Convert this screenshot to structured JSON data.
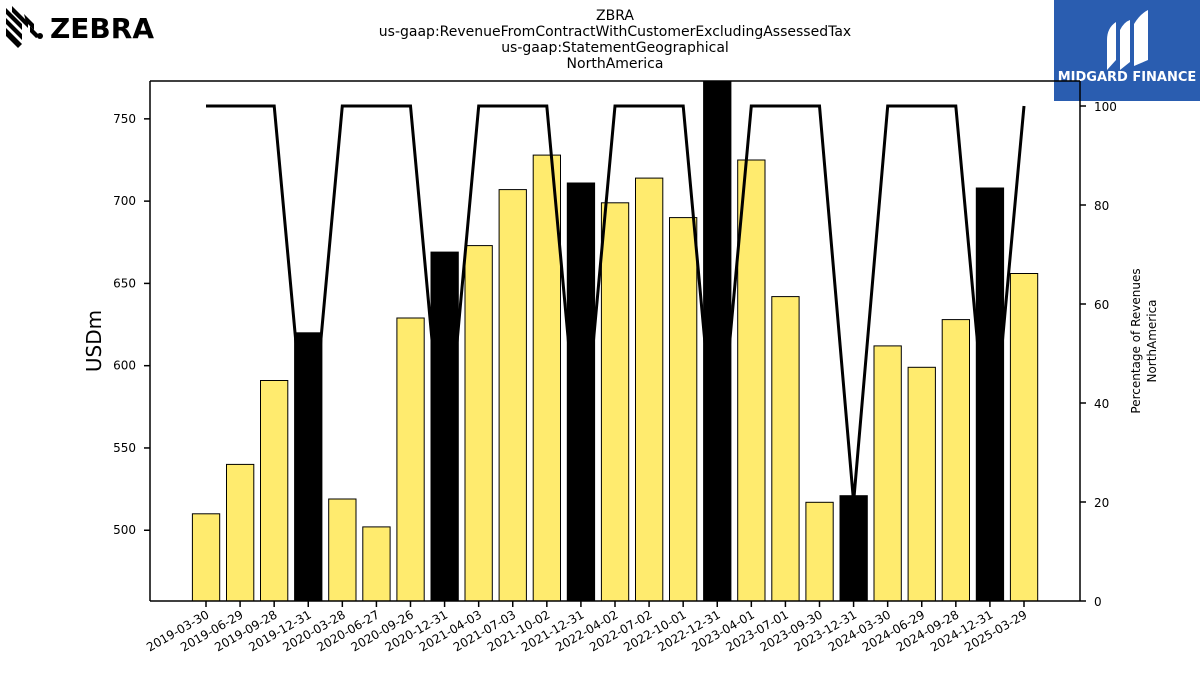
{
  "logos": {
    "left_text": "ZEBRA",
    "right_text": "MIDGARD FINANCE",
    "right_bg_color": "#2a5db0"
  },
  "chart_data": {
    "type": "bar",
    "title_lines": [
      "ZBRA",
      "us-gaap:RevenueFromContractWithCustomerExcludingAssessedTax",
      "us-gaap:StatementGeographical",
      "NorthAmerica"
    ],
    "ylabel": "USDm",
    "y2label_lines": [
      "Percentage of Revenues",
      "NorthAmerica"
    ],
    "ylim": [
      457,
      773
    ],
    "y2lim": [
      0,
      100
    ],
    "yticks": [
      500,
      550,
      600,
      650,
      700,
      750
    ],
    "y2ticks": [
      0,
      20,
      40,
      60,
      80,
      100
    ],
    "categories": [
      "2019-03-30",
      "2019-06-29",
      "2019-09-28",
      "2019-12-31",
      "2020-03-28",
      "2020-06-27",
      "2020-09-26",
      "2020-12-31",
      "2021-04-03",
      "2021-07-03",
      "2021-10-02",
      "2021-12-31",
      "2022-04-02",
      "2022-07-02",
      "2022-10-01",
      "2022-12-31",
      "2023-04-01",
      "2023-07-01",
      "2023-09-30",
      "2023-12-31",
      "2024-03-30",
      "2024-06-29",
      "2024-09-28",
      "2024-12-31",
      "2025-03-29"
    ],
    "series": [
      {
        "type": "bar",
        "values": [
          510,
          540,
          591,
          620,
          519,
          502,
          629,
          669,
          673,
          707,
          728,
          711,
          699,
          714,
          690,
          775,
          725,
          642,
          517,
          521,
          612,
          599,
          628,
          708,
          656
        ],
        "year_end": [
          false,
          false,
          false,
          true,
          false,
          false,
          false,
          true,
          false,
          false,
          false,
          true,
          false,
          false,
          false,
          true,
          false,
          false,
          false,
          true,
          false,
          false,
          false,
          true,
          false
        ]
      },
      {
        "type": "line",
        "axis": "right",
        "values": [
          100,
          100,
          100,
          25,
          100,
          100,
          100,
          25,
          100,
          100,
          100,
          25,
          100,
          100,
          100,
          25,
          100,
          100,
          100,
          20,
          100,
          100,
          100,
          25,
          100
        ]
      }
    ],
    "colors": {
      "bar": "#ffeb6e",
      "bar_year_end": "#000000",
      "line": "#000000"
    },
    "grid": false,
    "legend": "none"
  }
}
